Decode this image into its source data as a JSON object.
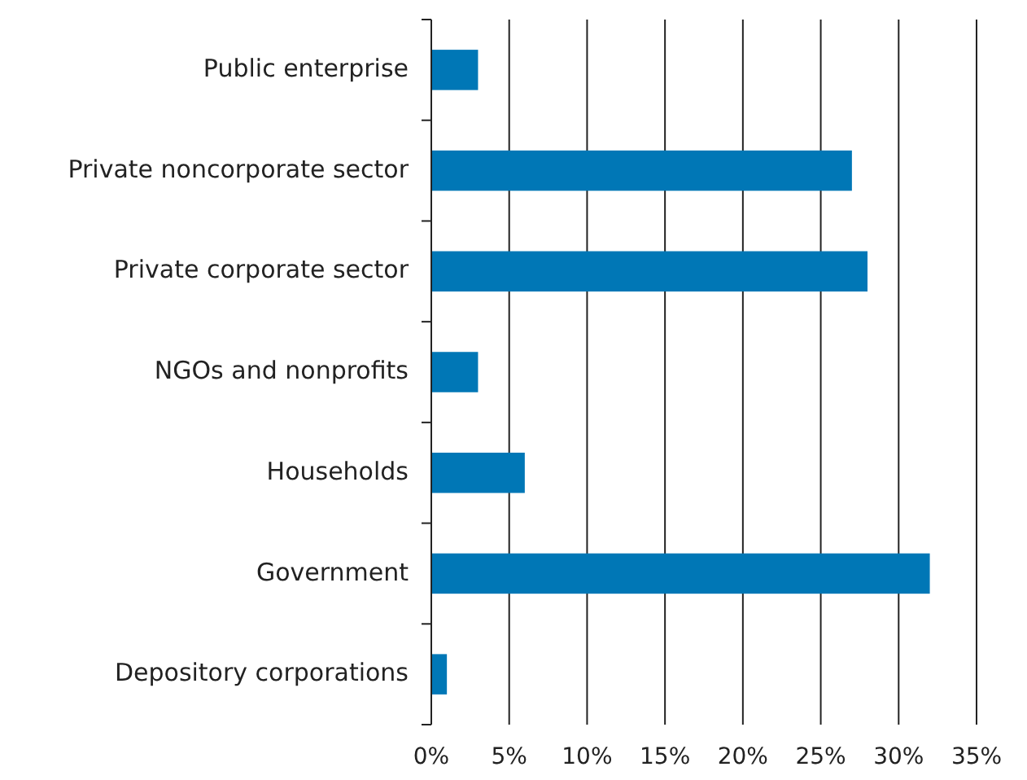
{
  "chart_data": {
    "type": "bar",
    "orientation": "horizontal",
    "categories": [
      "Public enterprise",
      "Private noncorporate sector",
      "Private corporate sector",
      "NGOs and nonprofits",
      "Households",
      "Government",
      "Depository corporations"
    ],
    "values": [
      3,
      27,
      28,
      3,
      6,
      32,
      1
    ],
    "color": "#0077b6",
    "xlim": [
      0,
      35
    ],
    "xticks": [
      {
        "value": 0,
        "label": "0%"
      },
      {
        "value": 5,
        "label": "5%"
      },
      {
        "value": 10,
        "label": "10%"
      },
      {
        "value": 15,
        "label": "15%"
      },
      {
        "value": 20,
        "label": "20%"
      },
      {
        "value": 25,
        "label": "25%"
      },
      {
        "value": 30,
        "label": "30%"
      },
      {
        "value": 35,
        "label": "35%"
      }
    ],
    "grid": "x"
  }
}
